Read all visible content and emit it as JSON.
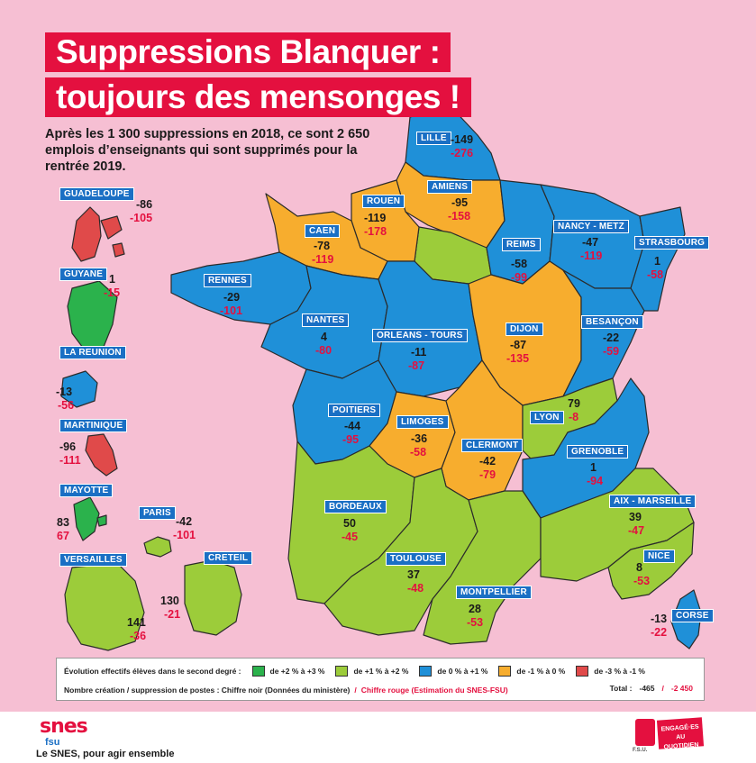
{
  "title": {
    "line1": "Suppressions Blanquer :",
    "line2": "toujours des mensonges !"
  },
  "subtitle": "Après les 1 300 suppressions en 2018, ce sont 2 650 emplois d’enseignants qui sont supprimés pour la rentrée 2019.",
  "colors": {
    "green_dark": "#2bb24c",
    "green_light": "#9ccc3a",
    "blue": "#1f90d8",
    "orange": "#f7ad2e",
    "red": "#e04a4a",
    "label_bg": "#1a6fc4",
    "accent": "#e4103f"
  },
  "regions": [
    {
      "name": "LILLE",
      "black": "-149",
      "red": "-276"
    },
    {
      "name": "AMIENS",
      "black": "-95",
      "red": "-158"
    },
    {
      "name": "ROUEN",
      "black": "-119",
      "red": "-178"
    },
    {
      "name": "CAEN",
      "black": "-78",
      "red": "-119"
    },
    {
      "name": "REIMS",
      "black": "-58",
      "red": "-99"
    },
    {
      "name": "NANCY - METZ",
      "black": "-47",
      "red": "-119"
    },
    {
      "name": "STRASBOURG",
      "black": "1",
      "red": "-58"
    },
    {
      "name": "RENNES",
      "black": "-29",
      "red": "-101"
    },
    {
      "name": "NANTES",
      "black": "4",
      "red": "-80"
    },
    {
      "name": "ORLEANS - TOURS",
      "black": "-11",
      "red": "-87"
    },
    {
      "name": "DIJON",
      "black": "-87",
      "red": "-135"
    },
    {
      "name": "BESANÇON",
      "black": "-22",
      "red": "-59"
    },
    {
      "name": "POITIERS",
      "black": "-44",
      "red": "-95"
    },
    {
      "name": "LIMOGES",
      "black": "-36",
      "red": "-58"
    },
    {
      "name": "CLERMONT",
      "black": "-42",
      "red": "-79"
    },
    {
      "name": "LYON",
      "black": "79",
      "red": "-8"
    },
    {
      "name": "GRENOBLE",
      "black": "1",
      "red": "-94"
    },
    {
      "name": "BORDEAUX",
      "black": "50",
      "red": "-45"
    },
    {
      "name": "TOULOUSE",
      "black": "37",
      "red": "-48"
    },
    {
      "name": "MONTPELLIER",
      "black": "28",
      "red": "-53"
    },
    {
      "name": "AIX - MARSEILLE",
      "black": "39",
      "red": "-47"
    },
    {
      "name": "NICE",
      "black": "8",
      "red": "-53"
    },
    {
      "name": "CORSE",
      "black": "-13",
      "red": "-22"
    },
    {
      "name": "GUADELOUPE",
      "black": "-86",
      "red": "-105"
    },
    {
      "name": "GUYANE",
      "black": "1",
      "red": "-15"
    },
    {
      "name": "LA REUNION",
      "black": "-13",
      "red": "-56"
    },
    {
      "name": "MARTINIQUE",
      "black": "-96",
      "red": "-111"
    },
    {
      "name": "MAYOTTE",
      "black": "83",
      "red": "67"
    },
    {
      "name": "PARIS",
      "black": "-42",
      "red": "-101"
    },
    {
      "name": "VERSAILLES",
      "black": "141",
      "red": "-36"
    },
    {
      "name": "CRETEIL",
      "black": "130",
      "red": "-21"
    }
  ],
  "legend": {
    "evolution_label": "Évolution effectifs élèves dans le second degré :",
    "items": [
      {
        "label": "de +2 % à +3 %",
        "color": "#2bb24c"
      },
      {
        "label": "de +1 % à +2 %",
        "color": "#9ccc3a"
      },
      {
        "label": "de  0 % à +1 %",
        "color": "#1f90d8"
      },
      {
        "label": "de -1 % à  0 %",
        "color": "#f7ad2e"
      },
      {
        "label": "de -3 % à -1 %",
        "color": "#e04a4a"
      }
    ],
    "creation_label": "Nombre création / suppression de postes : Chiffre noir (Données du ministère)",
    "separator": "/",
    "red_label": "Chiffre rouge (Estimation du SNES-FSU)",
    "total_label": "Total :",
    "total_black": "-465",
    "total_sep": "/",
    "total_red": "-2 450"
  },
  "footer": {
    "logo": "snes",
    "logo_sub": "fsu",
    "tagline": "Le SNES, pour agir ensemble",
    "badge_text": "F.S.U.",
    "engage": "ENGAGÉ·ES AU QUOTIDIEN"
  }
}
